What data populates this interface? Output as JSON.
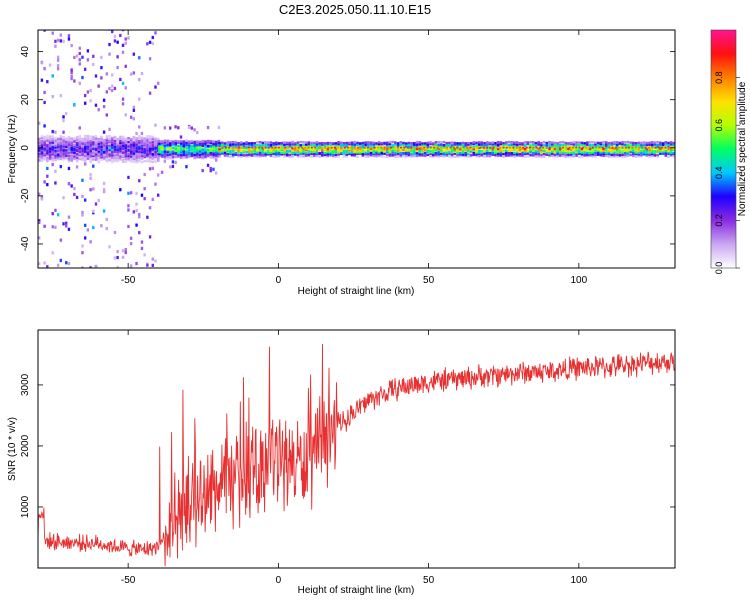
{
  "figure": {
    "title": "C2E3.2025.050.11.10.E15"
  },
  "chart_data": [
    {
      "type": "heatmap",
      "title": "C2E3.2025.050.11.10.E15",
      "xlabel": "Height of straight line (km)",
      "ylabel": "Frequency (Hz)",
      "xlim": [
        -80,
        132
      ],
      "ylim": [
        -50,
        49
      ],
      "xticks": [
        -50,
        0,
        50,
        100
      ],
      "yticks": [
        -40,
        -20,
        0,
        20,
        40
      ],
      "grid": false,
      "colorbar": {
        "label": "Normalized spectral amplitude",
        "range": [
          0,
          1
        ],
        "ticks": [
          "0.0",
          "0.2",
          "0.4",
          "0.6",
          "0.8"
        ],
        "colors": [
          "#ffffff",
          "#c9a7f2",
          "#8a2be2",
          "#1f00ff",
          "#00c8ff",
          "#00ff60",
          "#b4ff00",
          "#ffe000",
          "#ff7f00",
          "#ff1010",
          "#ff1493"
        ]
      },
      "regions": [
        {
          "x_start": -80,
          "x_end": -40,
          "band_halfwidth_hz": 6,
          "scatter_halfwidth_hz": 50,
          "peak_amplitude": 0.45
        },
        {
          "x_start": -40,
          "x_end": -20,
          "band_halfwidth_hz": 4,
          "scatter_halfwidth_hz": 10,
          "peak_amplitude": 0.7
        },
        {
          "x_start": -20,
          "x_end": 132,
          "band_halfwidth_hz": 3,
          "scatter_halfwidth_hz": 0,
          "peak_amplitude": 0.95
        }
      ]
    },
    {
      "type": "line",
      "xlabel": "Height of straight line (km)",
      "ylabel": "SNR (10 * v/v)",
      "xlim": [
        -80,
        132
      ],
      "ylim": [
        0,
        3900
      ],
      "xticks": [
        -50,
        0,
        50,
        100
      ],
      "yticks": [
        1000,
        2000,
        3000
      ],
      "grid": false,
      "series": [
        {
          "color": "#e83030",
          "x": [
            -80,
            -70,
            -60,
            -50,
            -45,
            -40,
            -35,
            -30,
            -25,
            -20,
            -15,
            -10,
            -5,
            0,
            5,
            10,
            15,
            20,
            25,
            30,
            35,
            40,
            50,
            60,
            70,
            80,
            90,
            100,
            110,
            120,
            132
          ],
          "y": [
            450,
            420,
            400,
            320,
            300,
            350,
            700,
            950,
            1200,
            1300,
            1450,
            1500,
            1700,
            1800,
            1750,
            1650,
            2050,
            2350,
            2550,
            2750,
            2850,
            2950,
            3050,
            3100,
            3150,
            3200,
            3220,
            3280,
            3300,
            3350,
            3400
          ]
        }
      ]
    }
  ]
}
